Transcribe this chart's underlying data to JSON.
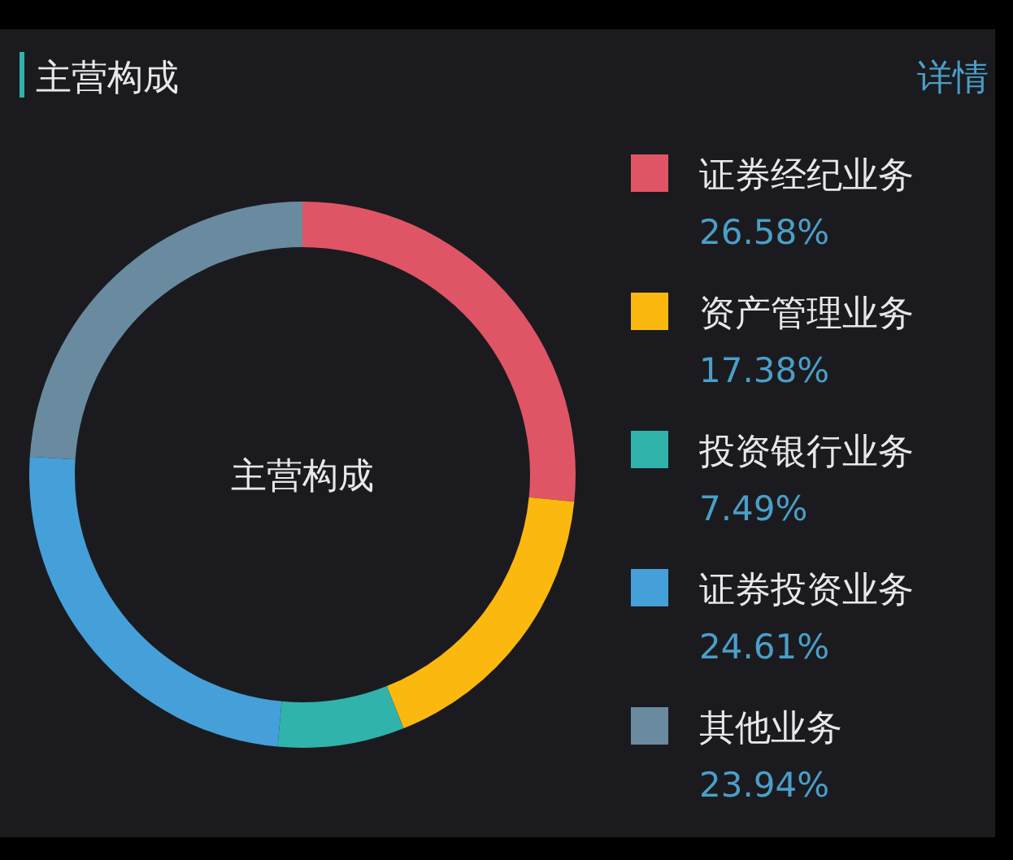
{
  "chart_data": {
    "type": "donut",
    "title": "主营构成",
    "categories": [
      "证券经纪业务",
      "资产管理业务",
      "投资银行业务",
      "证券投资业务",
      "其他业务"
    ],
    "values": [
      26.58,
      17.38,
      7.49,
      24.61,
      23.94
    ],
    "value_labels": [
      "26.58%",
      "17.38%",
      "7.49%",
      "24.61%",
      "23.94%"
    ],
    "colors": [
      "#e05565",
      "#fbb80f",
      "#2fb3ab",
      "#45a0d9",
      "#6a8aa0"
    ],
    "legend": "right",
    "annotations": [
      "详情",
      "主营构成"
    ]
  }
}
